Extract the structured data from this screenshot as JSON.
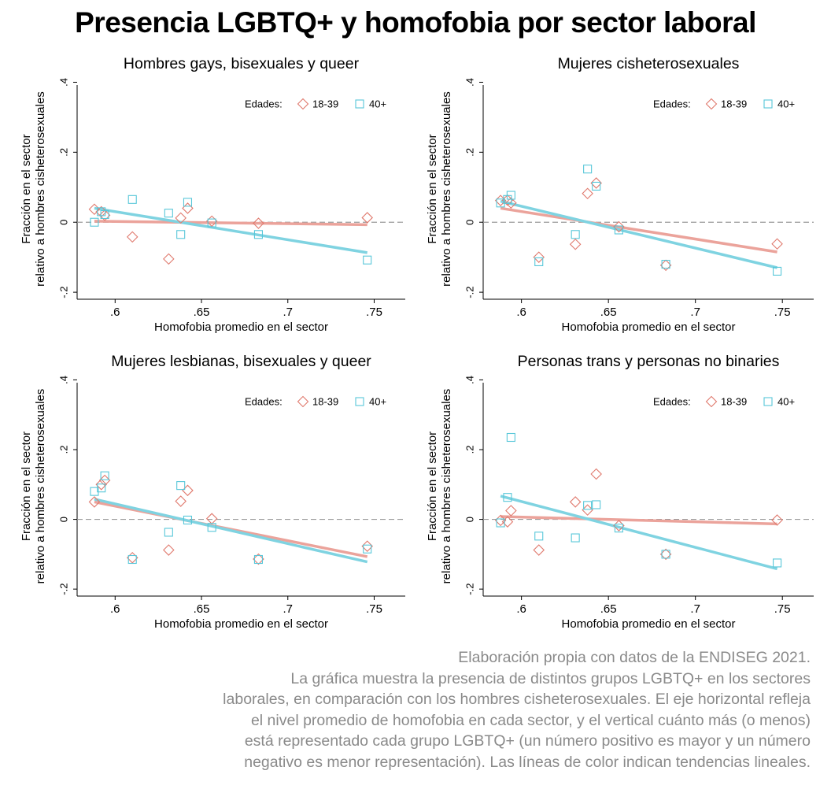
{
  "title": "Presencia LGBTQ+ y homofobia por sector laboral",
  "caption": [
    "Elaboración propia con datos de la ENDISEG 2021.",
    "La gráfica muestra la presencia de distintos grupos LGBTQ+ en los sectores",
    "laborales, en comparación con los hombres cisheterosexuales. El eje horizontal refleja",
    "el nivel promedio de homofobia en cada sector, y el vertical cuánto más (o menos)",
    "está representado cada grupo LGBTQ+ (un número positivo es mayor y un número",
    "negativo es menor representación). Las líneas de color indican tendencias lineales."
  ],
  "colors": {
    "series1": "#e07a6e",
    "series2": "#58c7d9",
    "line1": "#eba39b",
    "line2": "#7fd3e1",
    "refline": "#9a9a9a"
  },
  "chart_data": [
    {
      "type": "scatter",
      "title": "Hombres gays, bisexuales y queer",
      "xlabel": "Homofobia promedio en el sector",
      "ylabel": [
        "Fracción en el sector",
        "relativo a hombres cisheterosexuales"
      ],
      "xlim": [
        0.578,
        0.768
      ],
      "ylim": [
        -0.22,
        0.41
      ],
      "xticks": [
        0.6,
        0.65,
        0.7,
        0.75
      ],
      "xtick_labels": [
        ".6",
        ".65",
        ".7",
        ".75"
      ],
      "yticks": [
        -0.2,
        0,
        0.2,
        0.4
      ],
      "ytick_labels": [
        "-.2",
        "0",
        ".2",
        ".4"
      ],
      "reference_line": 0,
      "legend": {
        "title": "Edades:",
        "position": "top-right"
      },
      "series": [
        {
          "name": "18-39",
          "marker": "diamond",
          "points": [
            [
              0.588,
              0.037
            ],
            [
              0.592,
              0.03
            ],
            [
              0.594,
              0.02
            ],
            [
              0.61,
              -0.042
            ],
            [
              0.631,
              -0.105
            ],
            [
              0.638,
              0.012
            ],
            [
              0.642,
              0.04
            ],
            [
              0.656,
              0.003
            ],
            [
              0.683,
              -0.003
            ],
            [
              0.746,
              0.013
            ]
          ],
          "trend": [
            [
              0.588,
              0.003
            ],
            [
              0.746,
              -0.007
            ]
          ]
        },
        {
          "name": "40+",
          "marker": "square",
          "points": [
            [
              0.588,
              0.0
            ],
            [
              0.592,
              0.03
            ],
            [
              0.594,
              0.022
            ],
            [
              0.61,
              0.065
            ],
            [
              0.631,
              0.026
            ],
            [
              0.638,
              -0.035
            ],
            [
              0.642,
              0.057
            ],
            [
              0.656,
              -0.002
            ],
            [
              0.683,
              -0.035
            ],
            [
              0.746,
              -0.108
            ]
          ],
          "trend": [
            [
              0.588,
              0.04
            ],
            [
              0.746,
              -0.087
            ]
          ]
        }
      ]
    },
    {
      "type": "scatter",
      "title": "Mujeres cisheterosexuales",
      "xlabel": "Homofobia promedio en el sector",
      "ylabel": [
        "Fracción en el sector",
        "relativo a hombres cisheterosexuales"
      ],
      "xlim": [
        0.578,
        0.768
      ],
      "ylim": [
        -0.22,
        0.41
      ],
      "xticks": [
        0.6,
        0.65,
        0.7,
        0.75
      ],
      "xtick_labels": [
        ".6",
        ".65",
        ".7",
        ".75"
      ],
      "yticks": [
        -0.2,
        0,
        0.2,
        0.4
      ],
      "ytick_labels": [
        "-.2",
        "0",
        ".2",
        ".4"
      ],
      "reference_line": 0,
      "legend": {
        "title": "Edades:",
        "position": "top-right"
      },
      "series": [
        {
          "name": "18-39",
          "marker": "diamond",
          "points": [
            [
              0.588,
              0.062
            ],
            [
              0.592,
              0.063
            ],
            [
              0.594,
              0.055
            ],
            [
              0.61,
              -0.1
            ],
            [
              0.631,
              -0.063
            ],
            [
              0.638,
              0.082
            ],
            [
              0.643,
              0.112
            ],
            [
              0.656,
              -0.013
            ],
            [
              0.683,
              -0.123
            ],
            [
              0.747,
              -0.062
            ]
          ],
          "trend": [
            [
              0.588,
              0.04
            ],
            [
              0.747,
              -0.085
            ]
          ]
        },
        {
          "name": "40+",
          "marker": "square",
          "points": [
            [
              0.588,
              0.055
            ],
            [
              0.592,
              0.065
            ],
            [
              0.594,
              0.077
            ],
            [
              0.61,
              -0.113
            ],
            [
              0.631,
              -0.035
            ],
            [
              0.638,
              0.152
            ],
            [
              0.643,
              0.103
            ],
            [
              0.656,
              -0.022
            ],
            [
              0.683,
              -0.12
            ],
            [
              0.747,
              -0.14
            ]
          ],
          "trend": [
            [
              0.588,
              0.06
            ],
            [
              0.747,
              -0.13
            ]
          ]
        }
      ]
    },
    {
      "type": "scatter",
      "title": "Mujeres lesbianas, bisexuales y queer",
      "xlabel": "Homofobia promedio en el sector",
      "ylabel": [
        "Fracción en el sector",
        "relativo a hombres cisheterosexuales"
      ],
      "xlim": [
        0.578,
        0.768
      ],
      "ylim": [
        -0.22,
        0.41
      ],
      "xticks": [
        0.6,
        0.65,
        0.7,
        0.75
      ],
      "xtick_labels": [
        ".6",
        ".65",
        ".7",
        ".75"
      ],
      "yticks": [
        -0.2,
        0,
        0.2,
        0.4
      ],
      "ytick_labels": [
        "-.2",
        "0",
        ".2",
        ".4"
      ],
      "reference_line": 0,
      "legend": {
        "title": "Edades:",
        "position": "top-right"
      },
      "series": [
        {
          "name": "18-39",
          "marker": "diamond",
          "points": [
            [
              0.588,
              0.05
            ],
            [
              0.592,
              0.1
            ],
            [
              0.594,
              0.112
            ],
            [
              0.61,
              -0.11
            ],
            [
              0.631,
              -0.088
            ],
            [
              0.638,
              0.052
            ],
            [
              0.642,
              0.083
            ],
            [
              0.656,
              0.002
            ],
            [
              0.683,
              -0.114
            ],
            [
              0.746,
              -0.077
            ]
          ],
          "trend": [
            [
              0.588,
              0.05
            ],
            [
              0.746,
              -0.107
            ]
          ]
        },
        {
          "name": "40+",
          "marker": "square",
          "points": [
            [
              0.588,
              0.08
            ],
            [
              0.592,
              0.09
            ],
            [
              0.594,
              0.125
            ],
            [
              0.61,
              -0.115
            ],
            [
              0.631,
              -0.037
            ],
            [
              0.638,
              0.097
            ],
            [
              0.642,
              -0.002
            ],
            [
              0.656,
              -0.023
            ],
            [
              0.683,
              -0.115
            ],
            [
              0.746,
              -0.085
            ]
          ],
          "trend": [
            [
              0.588,
              0.058
            ],
            [
              0.746,
              -0.122
            ]
          ]
        }
      ]
    },
    {
      "type": "scatter",
      "title": "Personas trans y personas no binaries",
      "xlabel": "Homofobia promedio en el sector",
      "ylabel": [
        "Fracción en el sector",
        "relativo a hombres cisheterosexuales"
      ],
      "xlim": [
        0.578,
        0.768
      ],
      "ylim": [
        -0.22,
        0.41
      ],
      "xticks": [
        0.6,
        0.65,
        0.7,
        0.75
      ],
      "xtick_labels": [
        ".6",
        ".65",
        ".7",
        ".75"
      ],
      "yticks": [
        -0.2,
        0,
        0.2,
        0.4
      ],
      "ytick_labels": [
        "-.2",
        "0",
        ".2",
        ".4"
      ],
      "reference_line": 0,
      "legend": {
        "title": "Edades:",
        "position": "top-right"
      },
      "series": [
        {
          "name": "18-39",
          "marker": "diamond",
          "points": [
            [
              0.588,
              -0.003
            ],
            [
              0.592,
              -0.007
            ],
            [
              0.594,
              0.025
            ],
            [
              0.61,
              -0.088
            ],
            [
              0.631,
              0.05
            ],
            [
              0.638,
              0.027
            ],
            [
              0.643,
              0.13
            ],
            [
              0.656,
              -0.018
            ],
            [
              0.683,
              -0.1
            ],
            [
              0.747,
              -0.002
            ]
          ],
          "trend": [
            [
              0.588,
              0.008
            ],
            [
              0.747,
              -0.013
            ]
          ]
        },
        {
          "name": "40+",
          "marker": "square",
          "points": [
            [
              0.588,
              -0.01
            ],
            [
              0.592,
              0.063
            ],
            [
              0.594,
              0.235
            ],
            [
              0.61,
              -0.048
            ],
            [
              0.631,
              -0.053
            ],
            [
              0.638,
              0.04
            ],
            [
              0.643,
              0.042
            ],
            [
              0.656,
              -0.025
            ],
            [
              0.683,
              -0.1
            ],
            [
              0.747,
              -0.125
            ]
          ],
          "trend": [
            [
              0.588,
              0.067
            ],
            [
              0.747,
              -0.142
            ]
          ]
        }
      ]
    }
  ]
}
